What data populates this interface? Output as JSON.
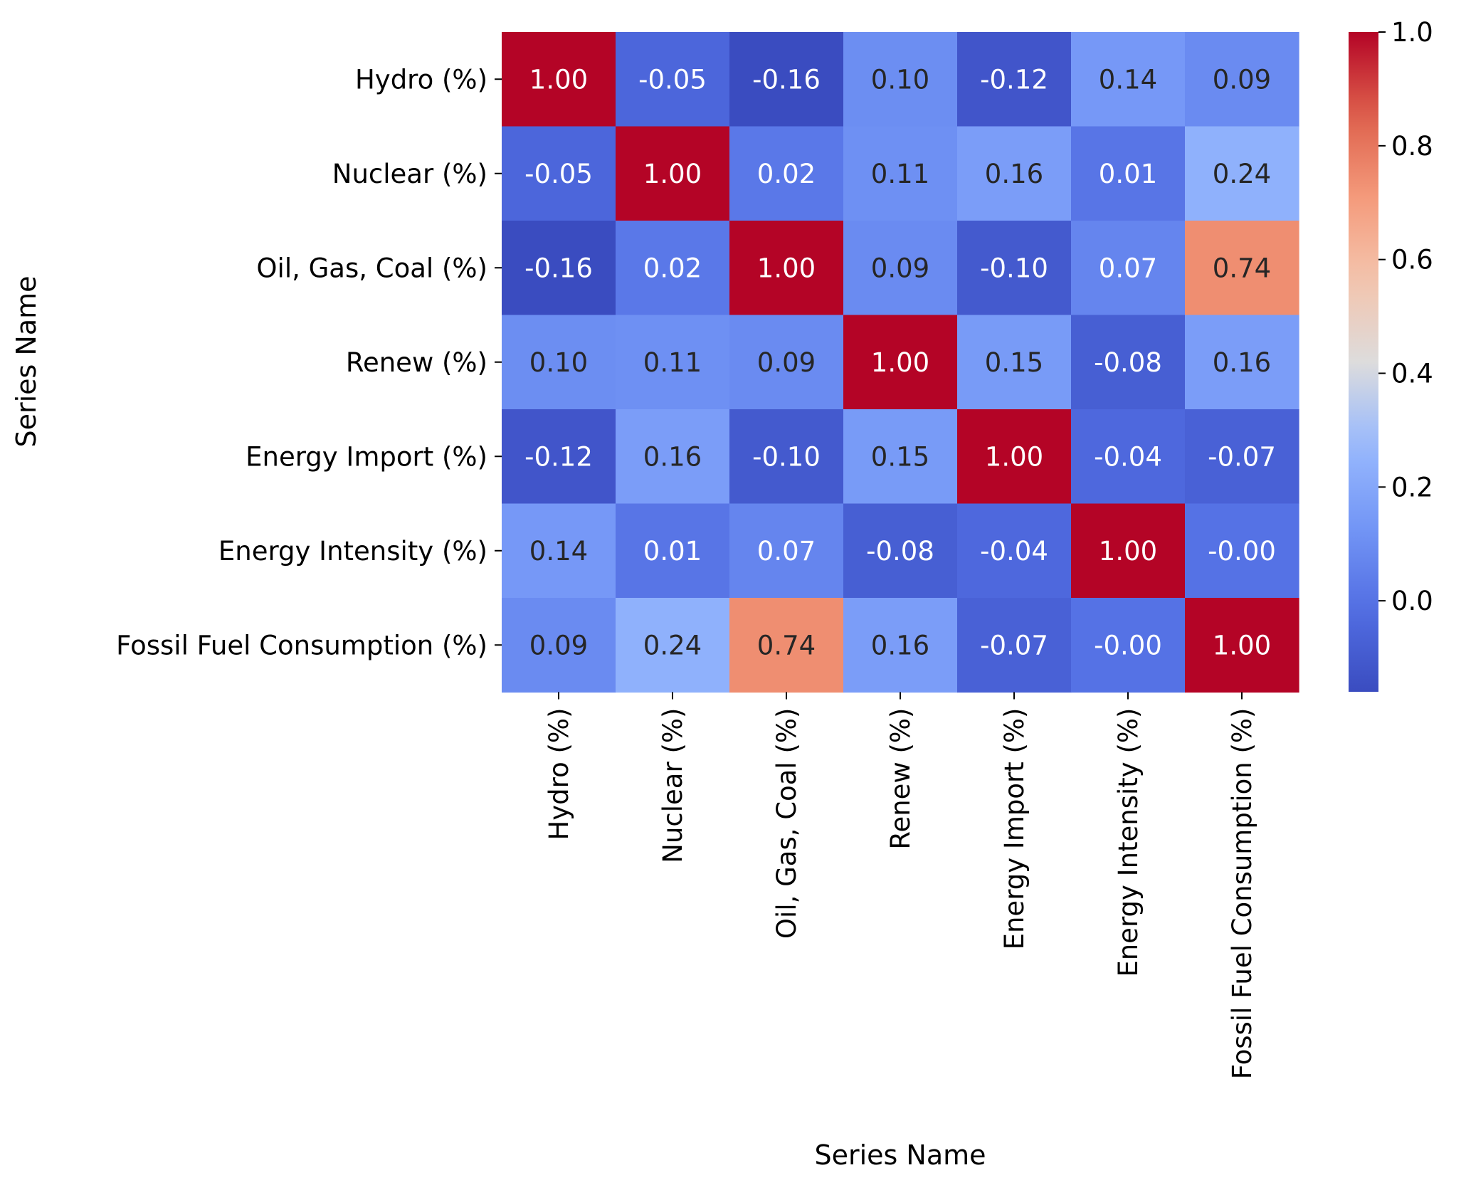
{
  "chart_data": {
    "type": "heatmap",
    "xlabel": "Series Name",
    "ylabel": "Series Name",
    "categories": [
      "Hydro (%)",
      "Nuclear (%)",
      "Oil, Gas, Coal (%)",
      "Renew (%)",
      "Energy Import (%)",
      "Energy Intensity (%)",
      "Fossil Fuel Consumption (%)"
    ],
    "values": [
      [
        1.0,
        -0.05,
        -0.16,
        0.1,
        -0.12,
        0.14,
        0.09
      ],
      [
        -0.05,
        1.0,
        0.02,
        0.11,
        0.16,
        0.01,
        0.24
      ],
      [
        -0.16,
        0.02,
        1.0,
        0.09,
        -0.1,
        0.07,
        0.74
      ],
      [
        0.1,
        0.11,
        0.09,
        1.0,
        0.15,
        -0.08,
        0.16
      ],
      [
        -0.12,
        0.16,
        -0.1,
        0.15,
        1.0,
        -0.04,
        -0.07
      ],
      [
        0.14,
        0.01,
        0.07,
        -0.08,
        -0.04,
        1.0,
        -0.0
      ],
      [
        0.09,
        0.24,
        0.74,
        0.16,
        -0.07,
        -0.0,
        1.0
      ]
    ],
    "cell_labels": [
      [
        "1.00",
        "-0.05",
        "-0.16",
        "0.10",
        "-0.12",
        "0.14",
        "0.09"
      ],
      [
        "-0.05",
        "1.00",
        "0.02",
        "0.11",
        "0.16",
        "0.01",
        "0.24"
      ],
      [
        "-0.16",
        "0.02",
        "1.00",
        "0.09",
        "-0.10",
        "0.07",
        "0.74"
      ],
      [
        "0.10",
        "0.11",
        "0.09",
        "1.00",
        "0.15",
        "-0.08",
        "0.16"
      ],
      [
        "-0.12",
        "0.16",
        "-0.10",
        "0.15",
        "1.00",
        "-0.04",
        "-0.07"
      ],
      [
        "0.14",
        "0.01",
        "0.07",
        "-0.08",
        "-0.04",
        "1.00",
        "-0.00"
      ],
      [
        "0.09",
        "0.24",
        "0.74",
        "0.16",
        "-0.07",
        "-0.00",
        "1.00"
      ]
    ],
    "colormap": "coolwarm",
    "color_range": [
      -0.16,
      1.0
    ],
    "colorbar": {
      "ticks": [
        0.0,
        0.2,
        0.4,
        0.6,
        0.8,
        1.0
      ],
      "tick_labels": [
        "0.0",
        "0.2",
        "0.4",
        "0.6",
        "0.8",
        "1.0"
      ],
      "placement": "right"
    },
    "annotation_colors": {
      "light": "#ffffff",
      "dark": "#262626"
    }
  }
}
